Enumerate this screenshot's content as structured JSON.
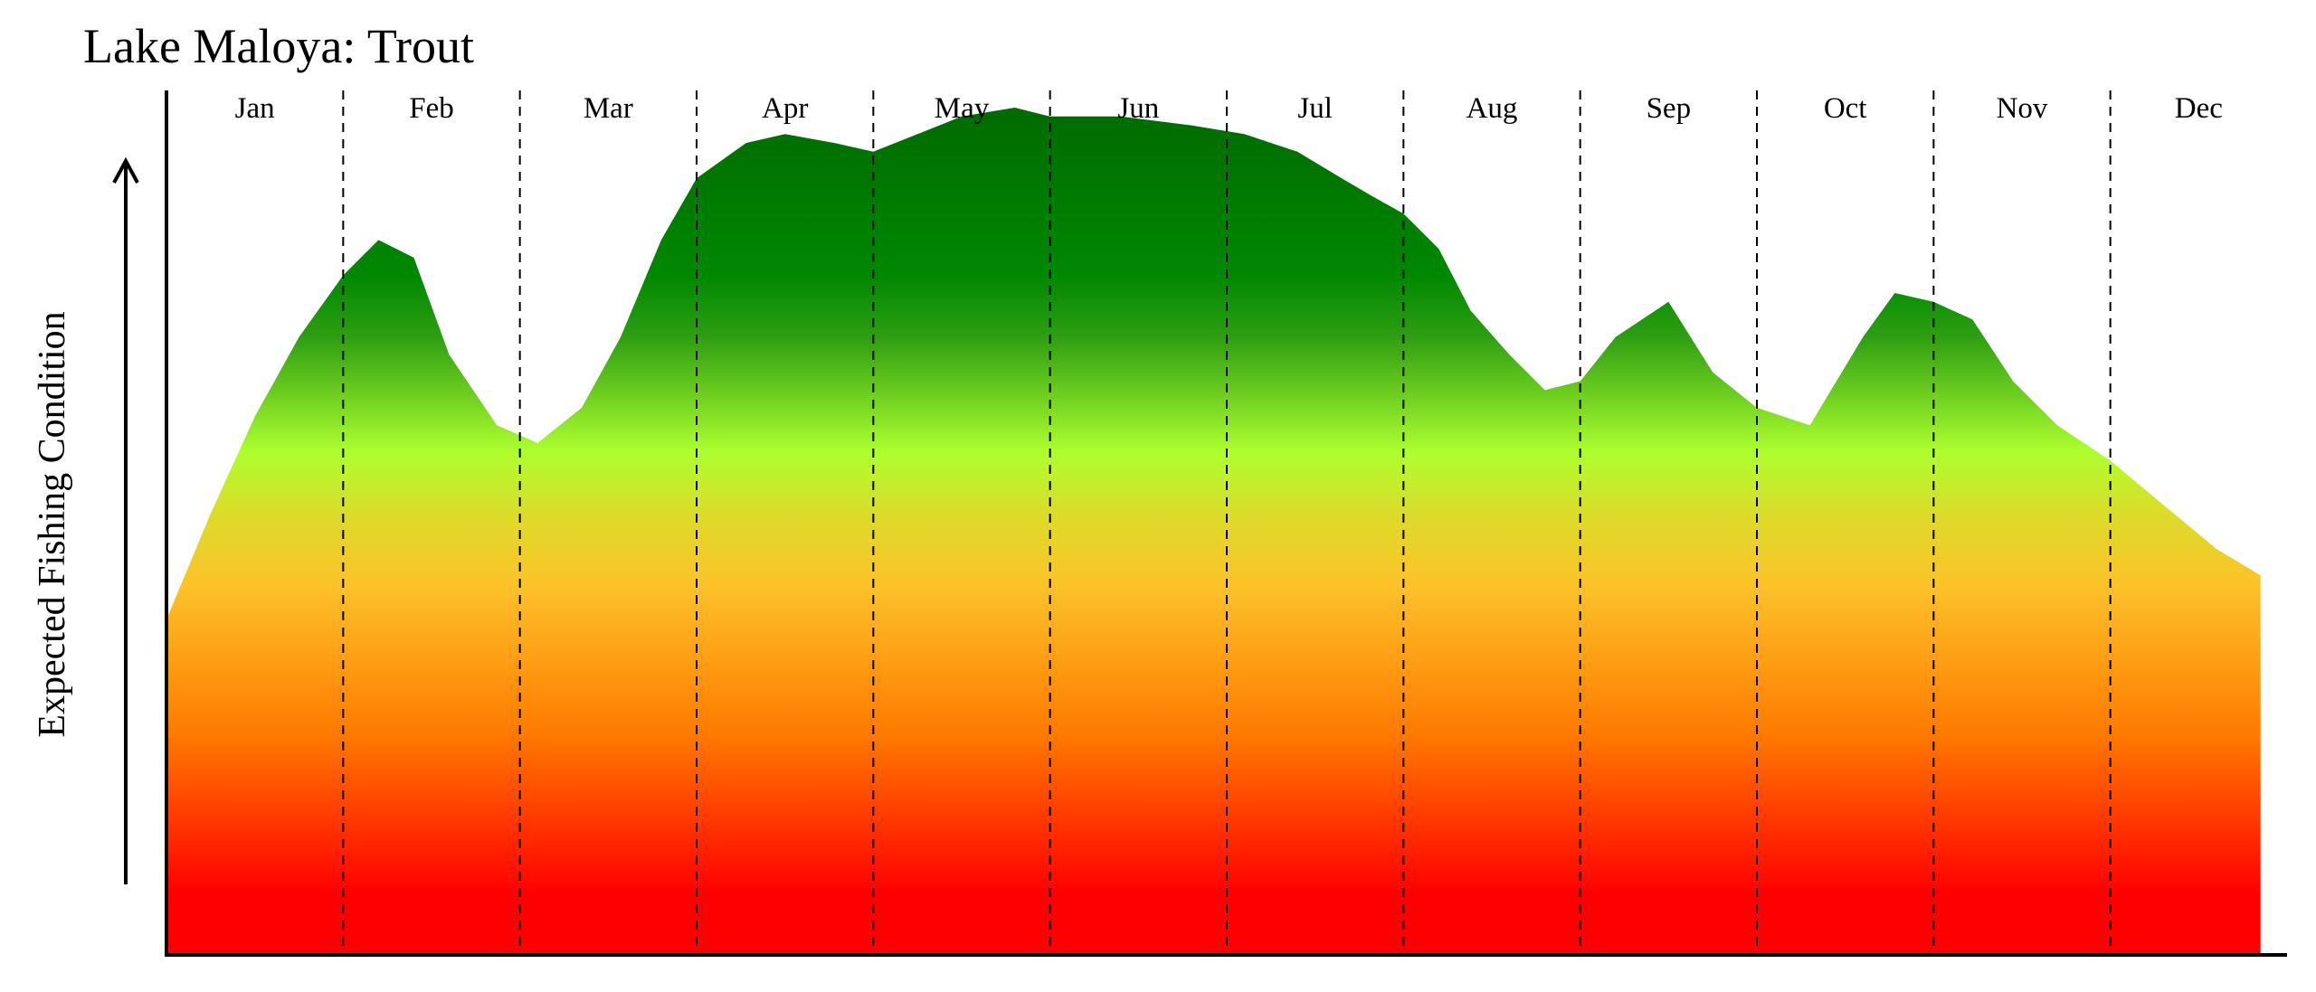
{
  "chart_data": {
    "type": "area",
    "title": "Lake Maloya: Trout",
    "ylabel": "Expected Fishing Condition",
    "xlabel": "",
    "categories": [
      "Jan",
      "Feb",
      "Mar",
      "Apr",
      "May",
      "Jun",
      "Jul",
      "Aug",
      "Sep",
      "Oct",
      "Nov",
      "Dec"
    ],
    "xlim": [
      0,
      12
    ],
    "ylim": [
      0,
      100
    ],
    "grid": "vertical-dashed-month-boundaries",
    "series": [
      {
        "x": [
          0,
          0.25,
          0.5,
          0.75,
          1.0,
          1.2,
          1.4,
          1.6,
          1.87,
          2.1,
          2.35,
          2.57,
          2.8,
          3.0,
          3.28,
          3.5,
          3.78,
          4.0,
          4.25,
          4.5,
          4.8,
          5.0,
          5.4,
          5.8,
          6.1,
          6.4,
          6.65,
          6.82,
          7.0,
          7.2,
          7.38,
          7.6,
          7.8,
          8.0,
          8.2,
          8.5,
          8.75,
          9.0,
          9.3,
          9.6,
          9.78,
          10.0,
          10.22,
          10.45,
          10.7,
          11.0,
          11.3,
          11.6,
          11.85
        ],
        "values": [
          38,
          50,
          61,
          70,
          77,
          81,
          79,
          68,
          60,
          58,
          62,
          70,
          81,
          88,
          92,
          93,
          92,
          91,
          93,
          95,
          96,
          95,
          95,
          94,
          93,
          91,
          88,
          86,
          84,
          80,
          73,
          68,
          64,
          65,
          70,
          74,
          66,
          62,
          60,
          70,
          75,
          74,
          72,
          65,
          60,
          56,
          51,
          46,
          43
        ]
      }
    ],
    "colors": {
      "top": "#006400",
      "mid_dark": "#008800",
      "lime": "#adff2f",
      "yellow": "#fcc329",
      "orange": "#ff8c00",
      "red": "#ff0000"
    }
  }
}
